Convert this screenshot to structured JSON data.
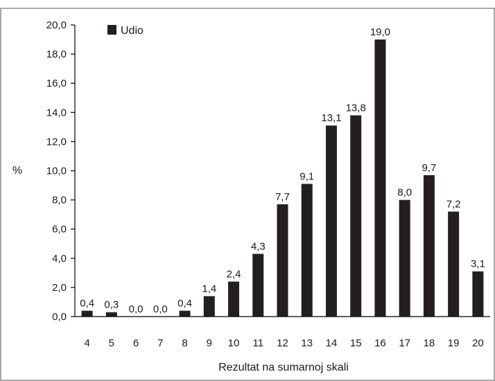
{
  "chart_data": {
    "type": "bar",
    "categories": [
      "4",
      "5",
      "6",
      "7",
      "8",
      "9",
      "10",
      "11",
      "12",
      "13",
      "14",
      "15",
      "16",
      "17",
      "18",
      "19",
      "20"
    ],
    "series": [
      {
        "name": "Udio",
        "values": [
          0.4,
          0.3,
          0.0,
          0.0,
          0.4,
          1.4,
          2.4,
          4.3,
          7.7,
          9.1,
          13.1,
          13.8,
          19.0,
          8.0,
          9.7,
          7.2,
          3.1
        ],
        "labels": [
          "0,4",
          "0,3",
          "0,0",
          "0,0",
          "0,4",
          "1,4",
          "2,4",
          "4,3",
          "7,7",
          "9,1",
          "13,1",
          "13,8",
          "19,0",
          "8,0",
          "9,7",
          "7,2",
          "3,1"
        ],
        "color": "#231f20"
      }
    ],
    "xlabel": "Rezultat na sumarnoj skali",
    "ylabel": "%",
    "ylim": [
      0,
      20
    ],
    "yticks": [
      0,
      2,
      4,
      6,
      8,
      10,
      12,
      14,
      16,
      18,
      20
    ],
    "ytick_labels": [
      "0,0",
      "2,0",
      "4,0",
      "6,0",
      "8,0",
      "10,0",
      "12,0",
      "14,0",
      "16,0",
      "18,0",
      "20,0"
    ],
    "legend_position": "top-left",
    "grid": false
  }
}
